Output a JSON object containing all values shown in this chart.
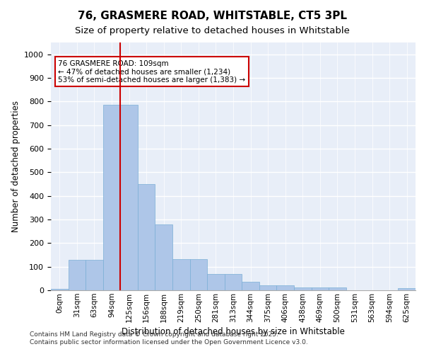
{
  "title_line1": "76, GRASMERE ROAD, WHITSTABLE, CT5 3PL",
  "title_line2": "Size of property relative to detached houses in Whitstable",
  "xlabel": "Distribution of detached houses by size in Whitstable",
  "ylabel": "Number of detached properties",
  "categories": [
    "0sqm",
    "31sqm",
    "63sqm",
    "94sqm",
    "125sqm",
    "156sqm",
    "188sqm",
    "219sqm",
    "250sqm",
    "281sqm",
    "313sqm",
    "344sqm",
    "375sqm",
    "406sqm",
    "438sqm",
    "469sqm",
    "500sqm",
    "531sqm",
    "563sqm",
    "594sqm",
    "625sqm"
  ],
  "values": [
    5,
    130,
    130,
    785,
    785,
    450,
    280,
    133,
    133,
    70,
    70,
    37,
    22,
    22,
    12,
    12,
    12,
    0,
    0,
    0,
    8
  ],
  "bar_color": "#aec6e8",
  "bar_edge_color": "#7aaed6",
  "vline_x": 3.5,
  "vline_color": "#cc0000",
  "annotation_text": "76 GRASMERE ROAD: 109sqm\n← 47% of detached houses are smaller (1,234)\n53% of semi-detached houses are larger (1,383) →",
  "annotation_box_color": "#ffffff",
  "annotation_box_edge_color": "#cc0000",
  "ylim": [
    0,
    1050
  ],
  "yticks": [
    0,
    100,
    200,
    300,
    400,
    500,
    600,
    700,
    800,
    900,
    1000
  ],
  "background_color": "#e8eef8",
  "grid_color": "#ffffff",
  "footer_line1": "Contains HM Land Registry data © Crown copyright and database right 2025.",
  "footer_line2": "Contains public sector information licensed under the Open Government Licence v3.0."
}
